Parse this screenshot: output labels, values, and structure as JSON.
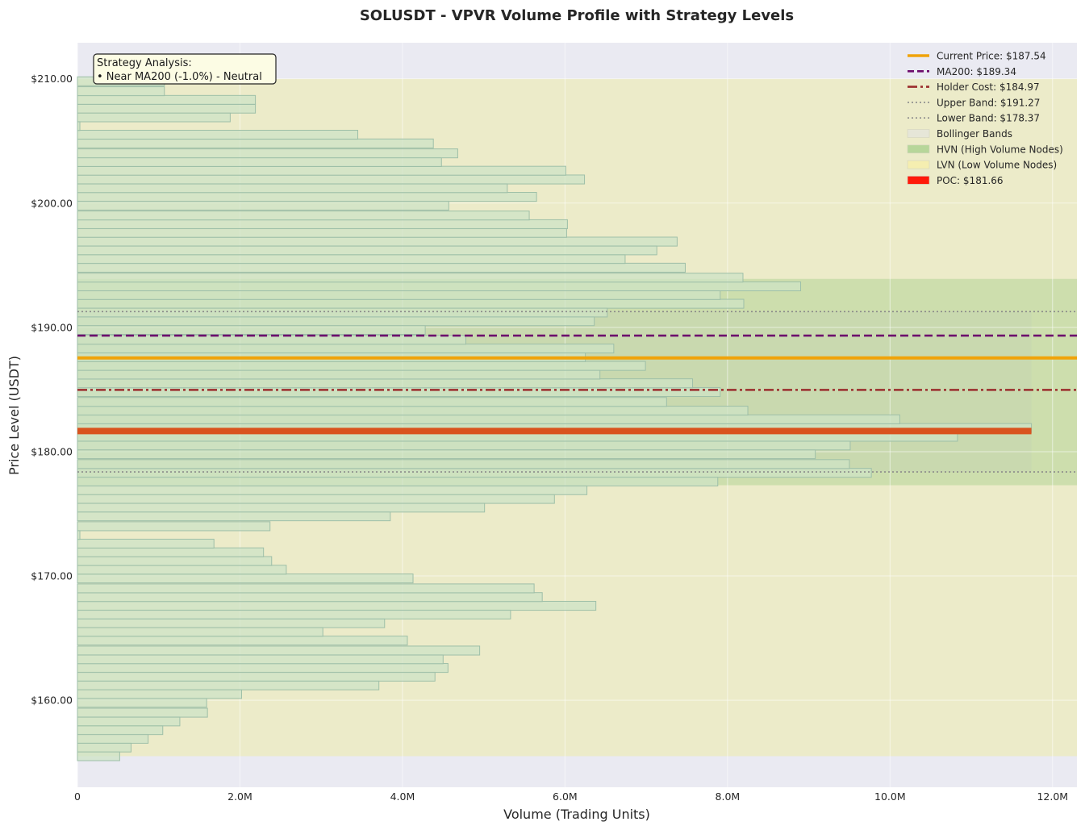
{
  "chart_data": {
    "type": "bar",
    "orientation": "horizontal",
    "title": "SOLUSDT - VPVR Volume Profile with Strategy Levels",
    "xlabel": "Volume (Trading Units)",
    "ylabel": "Price Level (USDT)",
    "xlim": [
      0,
      12300000
    ],
    "ylim": [
      153,
      212.9
    ],
    "xticks": [
      0,
      2000000,
      4000000,
      6000000,
      8000000,
      10000000,
      12000000
    ],
    "xtick_labels": [
      "0",
      "2.0M",
      "4.0M",
      "6.0M",
      "8.0M",
      "10.0M",
      "12.0M"
    ],
    "yticks": [
      160,
      170,
      180,
      190,
      200,
      210
    ],
    "ytick_labels": [
      "$160.00",
      "$170.00",
      "$180.00",
      "$190.00",
      "$200.00",
      "$210.00"
    ],
    "grid": true,
    "legend_position": "top-right",
    "bin_width": 0.72,
    "bins": [
      {
        "price": 155.5,
        "volume": 520000
      },
      {
        "price": 156.2,
        "volume": 660000
      },
      {
        "price": 156.9,
        "volume": 870000
      },
      {
        "price": 157.6,
        "volume": 1050000
      },
      {
        "price": 158.3,
        "volume": 1260000
      },
      {
        "price": 159.0,
        "volume": 1600000
      },
      {
        "price": 159.8,
        "volume": 1590000
      },
      {
        "price": 160.5,
        "volume": 2020000
      },
      {
        "price": 161.2,
        "volume": 3710000
      },
      {
        "price": 161.9,
        "volume": 4400000
      },
      {
        "price": 162.6,
        "volume": 4560000
      },
      {
        "price": 163.3,
        "volume": 4500000
      },
      {
        "price": 164.0,
        "volume": 4950000
      },
      {
        "price": 164.8,
        "volume": 4060000
      },
      {
        "price": 165.5,
        "volume": 3020000
      },
      {
        "price": 166.2,
        "volume": 3780000
      },
      {
        "price": 166.9,
        "volume": 5330000
      },
      {
        "price": 167.6,
        "volume": 6380000
      },
      {
        "price": 168.3,
        "volume": 5720000
      },
      {
        "price": 169.0,
        "volume": 5620000
      },
      {
        "price": 169.8,
        "volume": 4130000
      },
      {
        "price": 170.5,
        "volume": 2570000
      },
      {
        "price": 171.2,
        "volume": 2390000
      },
      {
        "price": 171.9,
        "volume": 2290000
      },
      {
        "price": 172.6,
        "volume": 1680000
      },
      {
        "price": 173.3,
        "volume": 30000
      },
      {
        "price": 174.0,
        "volume": 2370000
      },
      {
        "price": 174.8,
        "volume": 3850000
      },
      {
        "price": 175.5,
        "volume": 5010000
      },
      {
        "price": 176.2,
        "volume": 5870000
      },
      {
        "price": 176.9,
        "volume": 6270000
      },
      {
        "price": 177.6,
        "volume": 7880000
      },
      {
        "price": 178.3,
        "volume": 9770000
      },
      {
        "price": 179.0,
        "volume": 9500000
      },
      {
        "price": 179.8,
        "volume": 9080000
      },
      {
        "price": 180.5,
        "volume": 9510000
      },
      {
        "price": 181.2,
        "volume": 10830000
      },
      {
        "price": 181.9,
        "volume": 11740000
      },
      {
        "price": 182.6,
        "volume": 10120000
      },
      {
        "price": 183.3,
        "volume": 8250000
      },
      {
        "price": 184.0,
        "volume": 7250000
      },
      {
        "price": 184.8,
        "volume": 7910000
      },
      {
        "price": 185.5,
        "volume": 7570000
      },
      {
        "price": 186.2,
        "volume": 6430000
      },
      {
        "price": 186.9,
        "volume": 6990000
      },
      {
        "price": 187.6,
        "volume": 6250000
      },
      {
        "price": 188.3,
        "volume": 6600000
      },
      {
        "price": 189.0,
        "volume": 4780000
      },
      {
        "price": 189.8,
        "volume": 4280000
      },
      {
        "price": 190.5,
        "volume": 6360000
      },
      {
        "price": 191.2,
        "volume": 6520000
      },
      {
        "price": 191.9,
        "volume": 8200000
      },
      {
        "price": 192.6,
        "volume": 7910000
      },
      {
        "price": 193.3,
        "volume": 8900000
      },
      {
        "price": 194.0,
        "volume": 8190000
      },
      {
        "price": 194.8,
        "volume": 7480000
      },
      {
        "price": 195.5,
        "volume": 6740000
      },
      {
        "price": 196.2,
        "volume": 7130000
      },
      {
        "price": 196.9,
        "volume": 7380000
      },
      {
        "price": 197.6,
        "volume": 6020000
      },
      {
        "price": 198.3,
        "volume": 6030000
      },
      {
        "price": 199.0,
        "volume": 5560000
      },
      {
        "price": 199.8,
        "volume": 4570000
      },
      {
        "price": 200.5,
        "volume": 5650000
      },
      {
        "price": 201.2,
        "volume": 5290000
      },
      {
        "price": 201.9,
        "volume": 6240000
      },
      {
        "price": 202.6,
        "volume": 6010000
      },
      {
        "price": 203.3,
        "volume": 4480000
      },
      {
        "price": 204.0,
        "volume": 4680000
      },
      {
        "price": 204.8,
        "volume": 4380000
      },
      {
        "price": 205.5,
        "volume": 3450000
      },
      {
        "price": 206.2,
        "volume": 30000
      },
      {
        "price": 206.9,
        "volume": 1880000
      },
      {
        "price": 207.6,
        "volume": 2190000
      },
      {
        "price": 208.3,
        "volume": 2190000
      },
      {
        "price": 209.0,
        "volume": 1070000
      },
      {
        "price": 209.8,
        "volume": 1070000
      }
    ],
    "hvn_range": [
      177.3,
      193.9
    ],
    "lvn_range": [
      155.5,
      210.0
    ],
    "bollinger_bands": {
      "upper": 191.27,
      "lower": 178.37,
      "volume_extent": 11740000
    },
    "levels": [
      {
        "name": "Current Price",
        "value": 187.54,
        "color": "#f0a30a",
        "style": "solid"
      },
      {
        "name": "MA200",
        "value": 189.34,
        "color": "#6d0c6d",
        "style": "dashed"
      },
      {
        "name": "Holder Cost",
        "value": 184.97,
        "color": "#9b2d2d",
        "style": "dashdot"
      },
      {
        "name": "Upper Band",
        "value": 191.27,
        "color": "#8a8a8a",
        "style": "dotted"
      },
      {
        "name": "Lower Band",
        "value": 178.37,
        "color": "#8a8a8a",
        "style": "dotted"
      }
    ],
    "poc": {
      "value": 181.66,
      "volume": 11740000,
      "color": "#d9531e"
    },
    "legend": [
      {
        "label": "Current Price: $187.54",
        "kind": "line",
        "color": "#f0a30a",
        "style": "solid"
      },
      {
        "label": "MA200: $189.34",
        "kind": "line",
        "color": "#6d0c6d",
        "style": "dashed"
      },
      {
        "label": "Holder Cost: $184.97",
        "kind": "line",
        "color": "#9b2d2d",
        "style": "dashdot"
      },
      {
        "label": "Upper Band: $191.27",
        "kind": "line",
        "color": "#8a8a8a",
        "style": "dotted"
      },
      {
        "label": "Lower Band: $178.37",
        "kind": "line",
        "color": "#8a8a8a",
        "style": "dotted"
      },
      {
        "label": "Bollinger Bands",
        "kind": "patch",
        "color": "#e6e6d8"
      },
      {
        "label": "HVN (High Volume Nodes)",
        "kind": "patch",
        "color": "#b7d69a"
      },
      {
        "label": "LVN (Low Volume Nodes)",
        "kind": "patch",
        "color": "#f5eeb0"
      },
      {
        "label": "POC: $181.66",
        "kind": "patch",
        "color": "#ff1a0a"
      }
    ],
    "annotation": {
      "title": "Strategy Analysis:",
      "lines": [
        "• Near MA200 (-1.0%) - Neutral"
      ]
    },
    "colors": {
      "plot_bg": "#eaeaf2",
      "bar_fill": "#cde3c6",
      "bar_edge": "#9ebfa8",
      "lvn_fill": "#ecebc9",
      "hvn_fill": "#c8dca8",
      "bb_fill": "#c6d6b0"
    }
  }
}
